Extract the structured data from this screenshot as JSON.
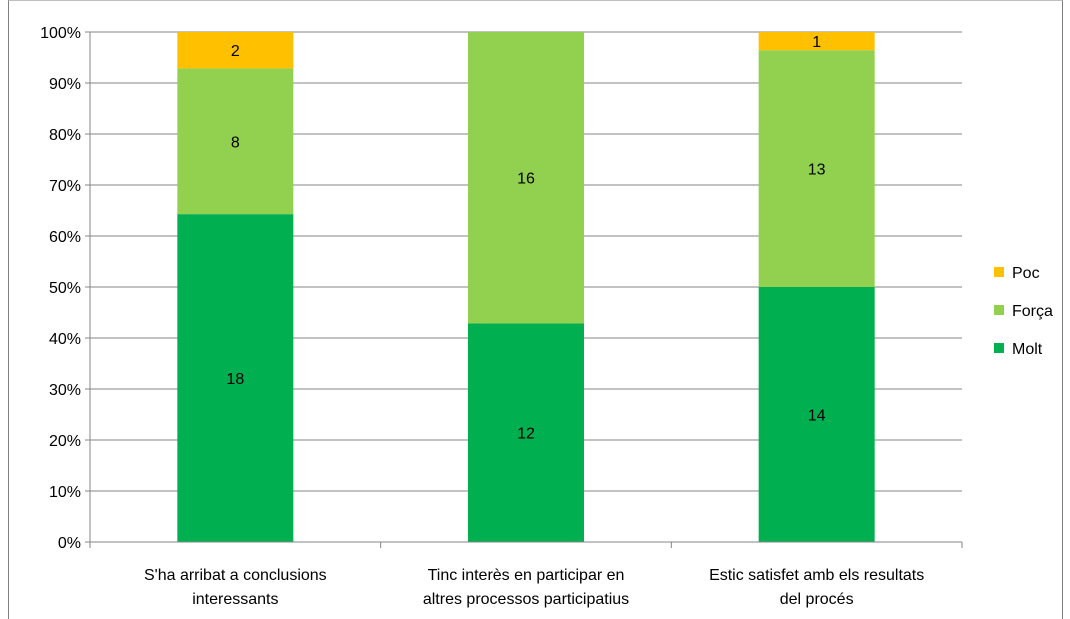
{
  "chart_data": {
    "type": "bar",
    "stacked": true,
    "normalized_percent": true,
    "categories": [
      [
        "S'ha arribat a conclusions",
        "interessants"
      ],
      [
        "Tinc interès en participar en",
        "altres processos participatius"
      ],
      [
        "Estic satisfet amb els resultats",
        "del procés"
      ]
    ],
    "series": [
      {
        "name": "Molt",
        "color": "#00b050",
        "values": [
          18,
          12,
          14
        ]
      },
      {
        "name": "Força",
        "color": "#92d050",
        "values": [
          8,
          16,
          13
        ]
      },
      {
        "name": "Poc",
        "color": "#ffc000",
        "values": [
          2,
          0,
          1
        ]
      }
    ],
    "legend_order": [
      "Poc",
      "Força",
      "Molt"
    ],
    "legend_position": "right",
    "y_ticks": [
      "0%",
      "10%",
      "20%",
      "30%",
      "40%",
      "50%",
      "60%",
      "70%",
      "80%",
      "90%",
      "100%"
    ],
    "ylim": [
      0,
      100
    ],
    "grid": true,
    "title": "",
    "xlabel": "",
    "ylabel": ""
  }
}
